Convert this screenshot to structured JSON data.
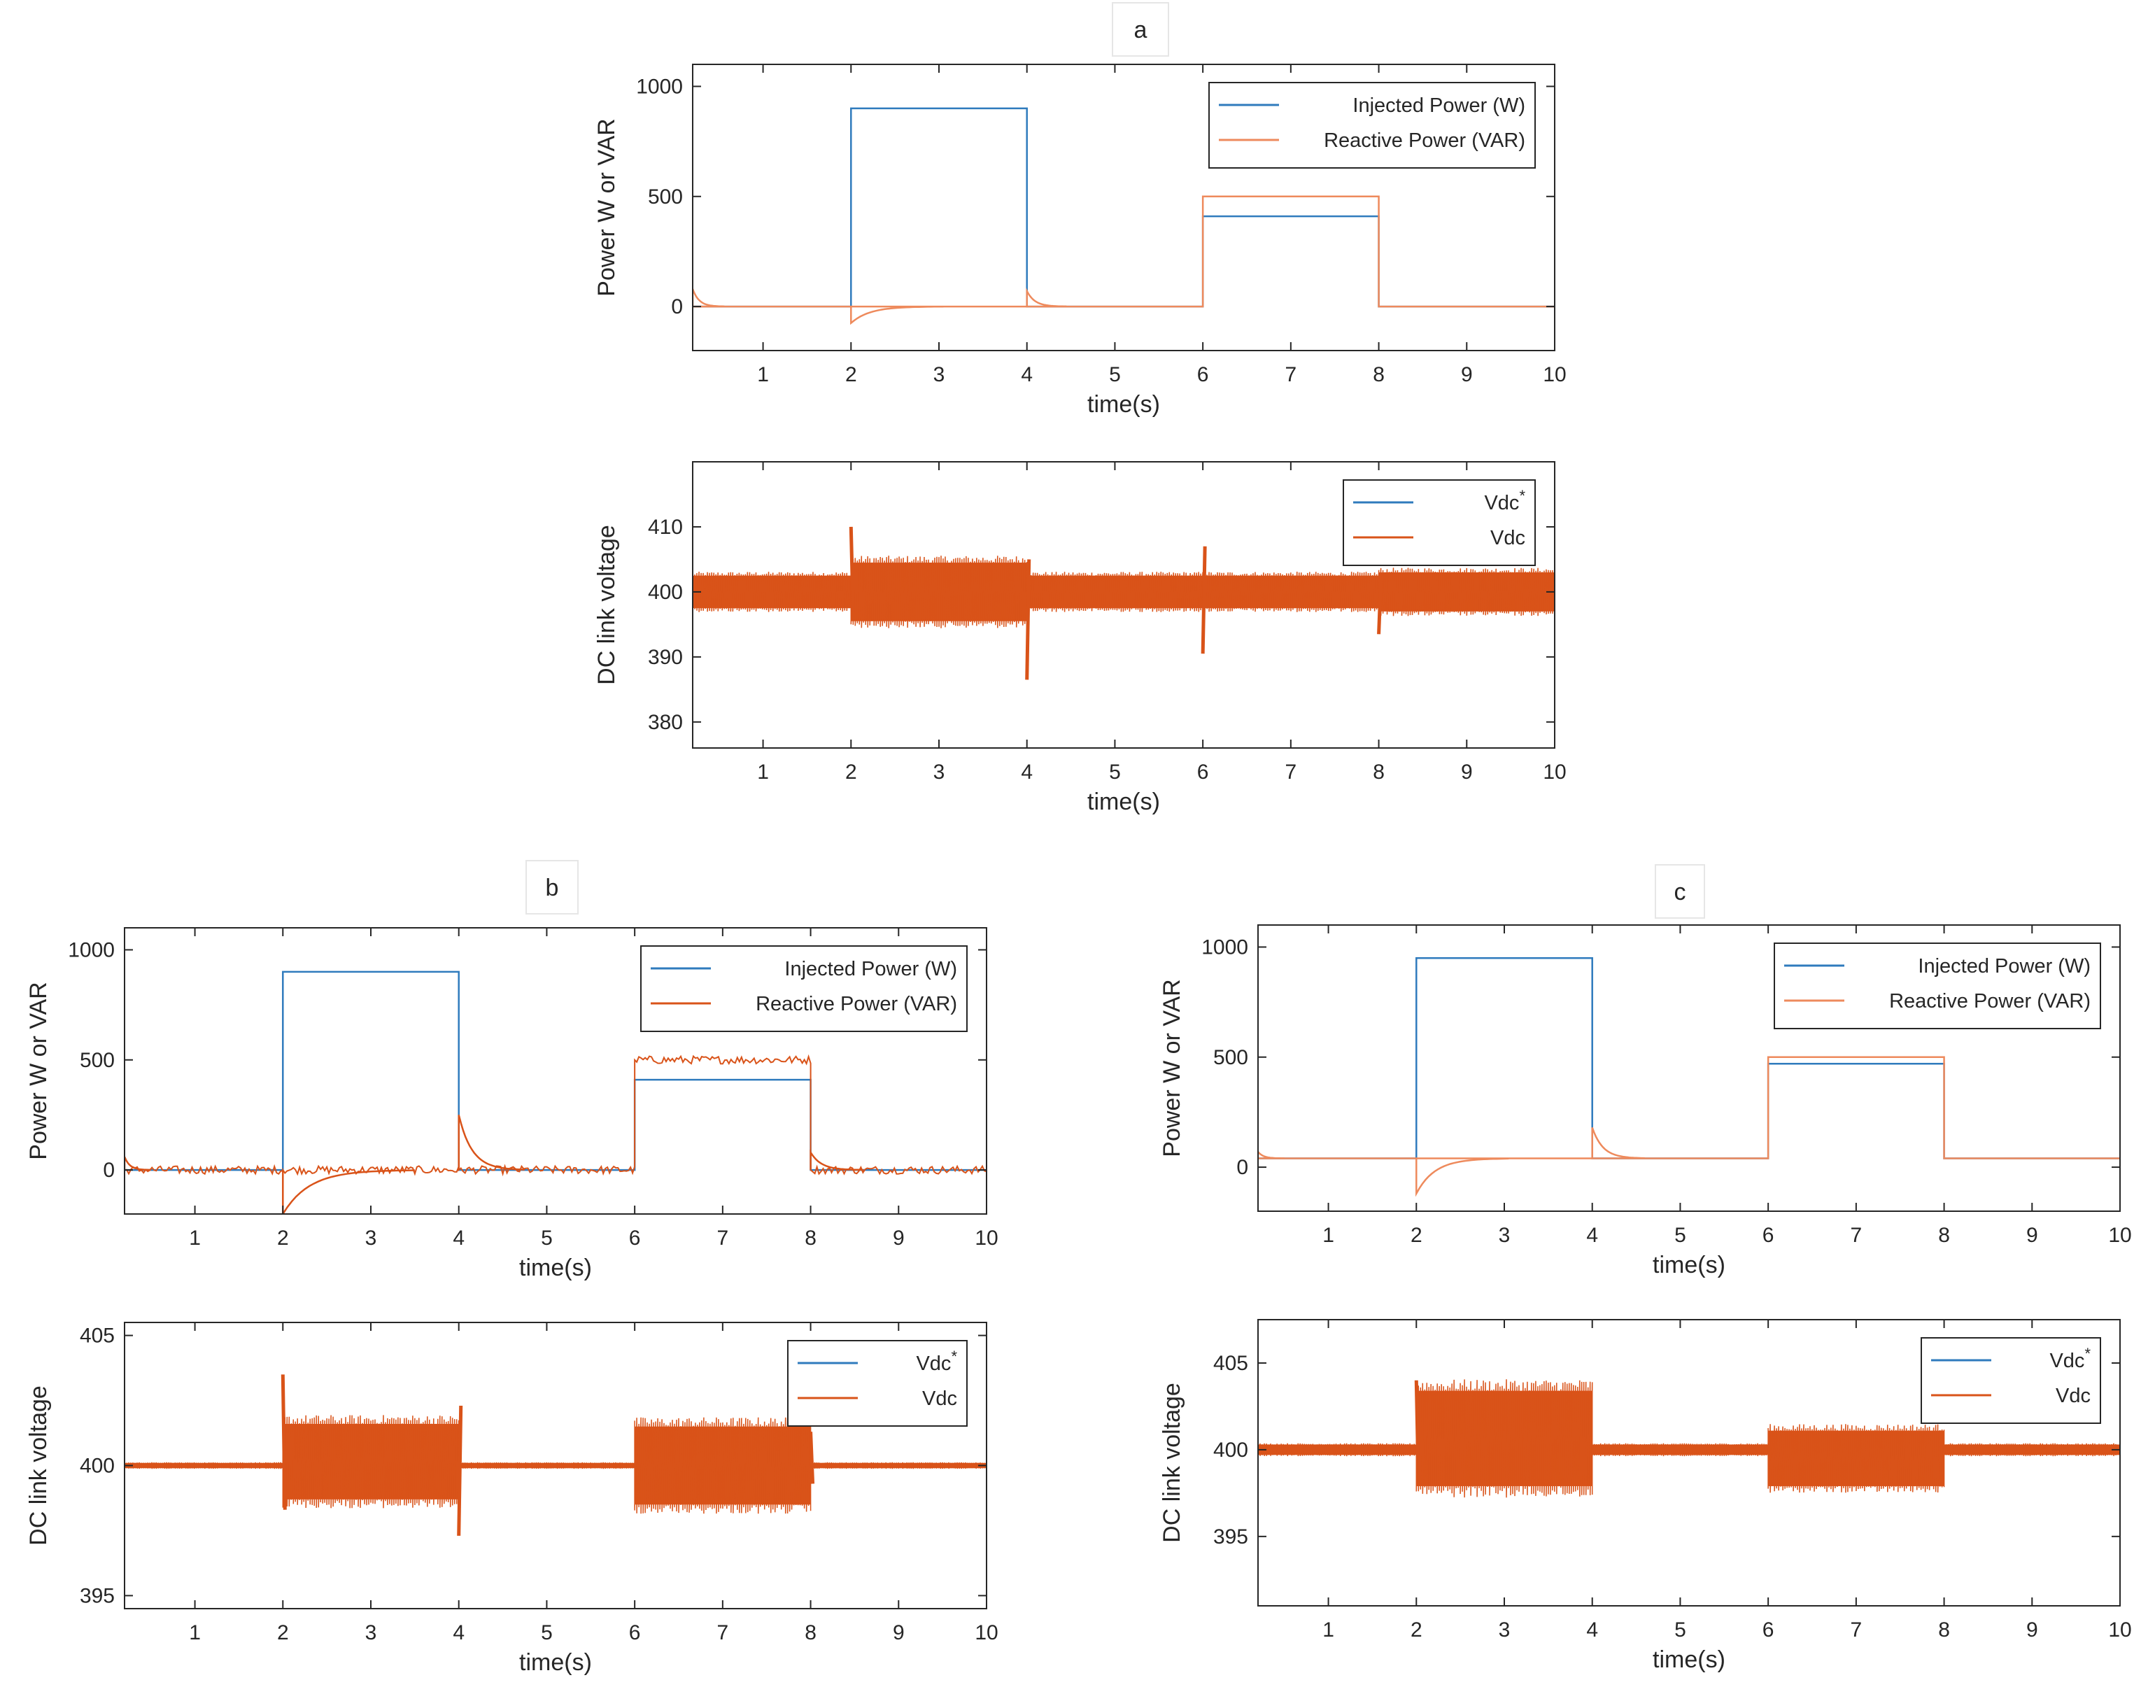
{
  "colors": {
    "blue": "#2f7bbd",
    "orange": "#d95319",
    "light_orange": "#ee8a5c",
    "axis": "#262626"
  },
  "panels": [
    {
      "id": "a",
      "label": "a"
    },
    {
      "id": "b",
      "label": "b"
    },
    {
      "id": "c",
      "label": "c"
    }
  ],
  "chart_data": [
    {
      "panel": "a",
      "type": "line",
      "title": "",
      "xlabel": "time(s)",
      "ylabel": "Power W or VAR",
      "xlim": [
        0.2,
        10
      ],
      "ylim": [
        -200,
        1100
      ],
      "xticks": [
        1,
        2,
        3,
        4,
        5,
        6,
        7,
        8,
        9,
        10
      ],
      "yticks": [
        0,
        500,
        1000
      ],
      "legend": "top-right",
      "series": [
        {
          "name": "Injected Power (W)",
          "color": "#2f7bbd",
          "kind": "steps",
          "steps": [
            [
              0.2,
              2,
              0
            ],
            [
              2,
              4,
              900
            ],
            [
              4,
              6,
              0
            ],
            [
              6,
              8,
              410
            ],
            [
              8,
              10,
              0
            ]
          ]
        },
        {
          "name": "Reactive Power (VAR)",
          "color": "#ee8a5c",
          "kind": "steps",
          "steps": [
            [
              0.2,
              2,
              0
            ],
            [
              2,
              4,
              0
            ],
            [
              4,
              6,
              0
            ],
            [
              6,
              8,
              500
            ],
            [
              8,
              10,
              0
            ]
          ],
          "spikes": [
            [
              0.2,
              80,
              0.12
            ],
            [
              2,
              -75,
              0.35
            ],
            [
              4,
              70,
              0.15
            ]
          ]
        }
      ]
    },
    {
      "panel": "a",
      "type": "line",
      "title": "",
      "xlabel": "time(s)",
      "ylabel": "DC link voltage",
      "xlim": [
        0.2,
        10
      ],
      "ylim": [
        376,
        420
      ],
      "xticks": [
        1,
        2,
        3,
        4,
        5,
        6,
        7,
        8,
        9,
        10
      ],
      "yticks": [
        380,
        390,
        400,
        410
      ],
      "legend": "top-right",
      "series": [
        {
          "name": "Vdc",
          "name_sup": "*",
          "color": "#2f7bbd",
          "kind": "flat",
          "value": 400
        },
        {
          "name": "Vdc",
          "color": "#d95319",
          "kind": "band",
          "bands": [
            [
              0.2,
              2,
              397.5,
              402.5
            ],
            [
              2,
              4,
              395.5,
              404.5
            ],
            [
              4,
              6,
              397.5,
              402.5
            ],
            [
              6,
              8,
              397.5,
              402.5
            ],
            [
              8,
              10,
              397,
              403
            ]
          ],
          "spikes": [
            [
              2,
              410,
              397
            ],
            [
              4,
              386.5,
              405
            ],
            [
              6,
              390.5,
              407
            ],
            [
              8,
              393.5,
              402
            ]
          ]
        }
      ]
    },
    {
      "panel": "b",
      "type": "line",
      "title": "",
      "xlabel": "time(s)",
      "ylabel": "Power W or VAR",
      "xlim": [
        0.2,
        10
      ],
      "ylim": [
        -200,
        1100
      ],
      "xticks": [
        1,
        2,
        3,
        4,
        5,
        6,
        7,
        8,
        9,
        10
      ],
      "yticks": [
        0,
        500,
        1000
      ],
      "legend": "top-right",
      "series": [
        {
          "name": "Injected Power (W)",
          "color": "#2f7bbd",
          "kind": "steps",
          "steps": [
            [
              0.2,
              2,
              0
            ],
            [
              2,
              4,
              900
            ],
            [
              4,
              6,
              0
            ],
            [
              6,
              8,
              410
            ],
            [
              8,
              10,
              0
            ]
          ]
        },
        {
          "name": "Reactive Power (VAR)",
          "color": "#d95319",
          "kind": "noisy-steps",
          "steps": [
            [
              0.2,
              2,
              0
            ],
            [
              2,
              4,
              0
            ],
            [
              4,
              6,
              0
            ],
            [
              6,
              8,
              500
            ],
            [
              8,
              10,
              0
            ]
          ],
          "noise": 18,
          "spikes": [
            [
              0.2,
              60,
              0.1
            ],
            [
              2,
              -200,
              0.5
            ],
            [
              4,
              250,
              0.25
            ],
            [
              8,
              80,
              0.2
            ]
          ]
        }
      ]
    },
    {
      "panel": "b",
      "type": "line",
      "title": "",
      "xlabel": "time(s)",
      "ylabel": "DC link voltage",
      "xlim": [
        0.2,
        10
      ],
      "ylim": [
        394.5,
        405.5
      ],
      "xticks": [
        1,
        2,
        3,
        4,
        5,
        6,
        7,
        8,
        9,
        10
      ],
      "yticks": [
        395,
        400,
        405
      ],
      "legend": "top-right",
      "series": [
        {
          "name": "Vdc",
          "name_sup": "*",
          "color": "#2f7bbd",
          "kind": "flat",
          "value": 400
        },
        {
          "name": "Vdc",
          "color": "#d95319",
          "kind": "band",
          "bands": [
            [
              0.2,
              2,
              399.9,
              400.1
            ],
            [
              2,
              4,
              398.7,
              401.6
            ],
            [
              4,
              6,
              399.9,
              400.1
            ],
            [
              6,
              8,
              398.5,
              401.5
            ],
            [
              8,
              10,
              399.9,
              400.1
            ]
          ],
          "spikes": [
            [
              2,
              403.5,
              398.3
            ],
            [
              4,
              397.3,
              402.3
            ],
            [
              8,
              401.3,
              399.3
            ]
          ]
        }
      ]
    },
    {
      "panel": "c",
      "type": "line",
      "title": "",
      "xlabel": "time(s)",
      "ylabel": "Power W or VAR",
      "xlim": [
        0.2,
        10
      ],
      "ylim": [
        -200,
        1100
      ],
      "xticks": [
        1,
        2,
        3,
        4,
        5,
        6,
        7,
        8,
        9,
        10
      ],
      "yticks": [
        0,
        500,
        1000
      ],
      "legend": "top-right",
      "series": [
        {
          "name": "Injected Power (W)",
          "color": "#2f7bbd",
          "kind": "steps",
          "steps": [
            [
              0.2,
              2,
              40
            ],
            [
              2,
              4,
              950
            ],
            [
              4,
              6,
              40
            ],
            [
              6,
              8,
              470
            ],
            [
              8,
              10,
              40
            ]
          ]
        },
        {
          "name": "Reactive Power (VAR)",
          "color": "#ee8a5c",
          "kind": "steps",
          "steps": [
            [
              0.2,
              2,
              40
            ],
            [
              2,
              4,
              40
            ],
            [
              4,
              6,
              40
            ],
            [
              6,
              8,
              500
            ],
            [
              8,
              10,
              40
            ]
          ],
          "spikes": [
            [
              0.2,
              70,
              0.1
            ],
            [
              2,
              -120,
              0.35
            ],
            [
              4,
              180,
              0.2
            ]
          ]
        }
      ]
    },
    {
      "panel": "c",
      "type": "line",
      "title": "",
      "xlabel": "time(s)",
      "ylabel": "DC link voltage",
      "xlim": [
        0.2,
        10
      ],
      "ylim": [
        391,
        407.5
      ],
      "xticks": [
        1,
        2,
        3,
        4,
        5,
        6,
        7,
        8,
        9,
        10
      ],
      "yticks": [
        395,
        400,
        405
      ],
      "legend": "top-right",
      "series": [
        {
          "name": "Vdc",
          "name_sup": "*",
          "color": "#2f7bbd",
          "kind": "flat",
          "value": 400
        },
        {
          "name": "Vdc",
          "color": "#d95319",
          "kind": "band",
          "bands": [
            [
              0.2,
              2,
              399.7,
              400.3
            ],
            [
              2,
              4,
              397.9,
              403.4
            ],
            [
              4,
              6,
              399.7,
              400.3
            ],
            [
              6,
              8,
              397.9,
              401.1
            ],
            [
              8,
              10,
              399.7,
              400.3
            ]
          ],
          "spikes": [
            [
              2,
              404,
              398
            ]
          ]
        }
      ]
    }
  ]
}
